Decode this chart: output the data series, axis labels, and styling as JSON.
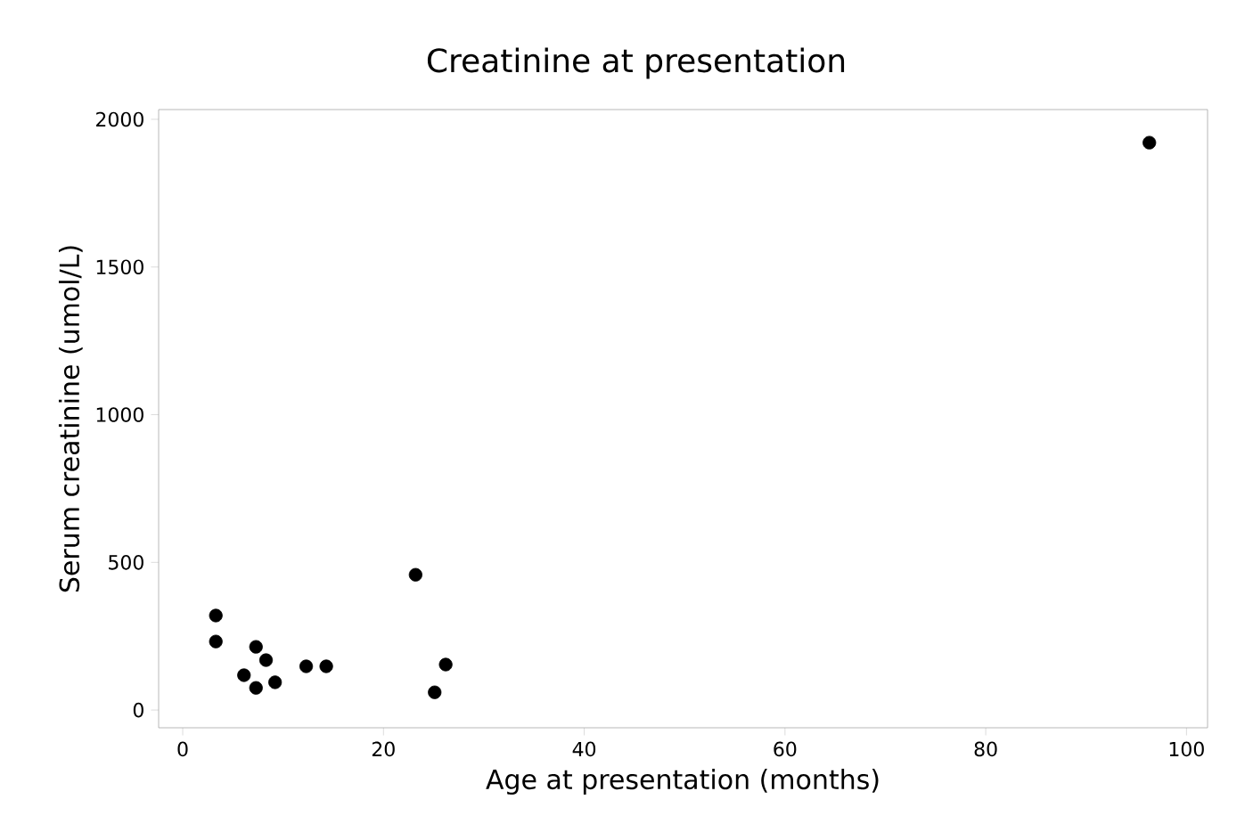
{
  "chart_data": {
    "type": "scatter",
    "title": "Creatinine at presentation",
    "xlabel": "Age at presentation (months)",
    "ylabel": "Serum creatinine (umol/L)",
    "x": [
      3.3,
      3.3,
      6.1,
      7.3,
      7.3,
      8.3,
      9.2,
      12.3,
      14.3,
      23.2,
      25.1,
      26.2,
      96.3
    ],
    "values": [
      320,
      232,
      118,
      214,
      75,
      169,
      94,
      148,
      148,
      458,
      60,
      154,
      1921
    ],
    "color": "#000000",
    "xlim": [
      -2.4,
      102.1
    ],
    "ylim": [
      -60,
      2033
    ],
    "xticks": [
      0,
      20,
      40,
      60,
      80,
      100
    ],
    "yticks": [
      0,
      500,
      1000,
      1500,
      2000
    ],
    "grid": false
  }
}
